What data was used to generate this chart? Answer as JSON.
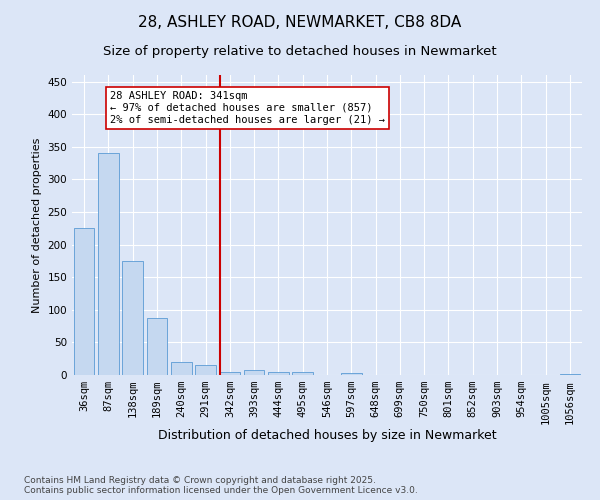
{
  "title1": "28, ASHLEY ROAD, NEWMARKET, CB8 8DA",
  "title2": "Size of property relative to detached houses in Newmarket",
  "xlabel": "Distribution of detached houses by size in Newmarket",
  "ylabel": "Number of detached properties",
  "categories": [
    "36sqm",
    "87sqm",
    "138sqm",
    "189sqm",
    "240sqm",
    "291sqm",
    "342sqm",
    "393sqm",
    "444sqm",
    "495sqm",
    "546sqm",
    "597sqm",
    "648sqm",
    "699sqm",
    "750sqm",
    "801sqm",
    "852sqm",
    "903sqm",
    "954sqm",
    "1005sqm",
    "1056sqm"
  ],
  "values": [
    225,
    340,
    175,
    88,
    20,
    15,
    5,
    7,
    5,
    5,
    0,
    3,
    0,
    0,
    0,
    0,
    0,
    0,
    0,
    0,
    2
  ],
  "bar_color": "#c5d8f0",
  "bar_edge_color": "#5a9bd5",
  "vline_index": 6,
  "vline_color": "#cc0000",
  "annotation_text": "28 ASHLEY ROAD: 341sqm\n← 97% of detached houses are smaller (857)\n2% of semi-detached houses are larger (21) →",
  "annotation_box_color": "#ffffff",
  "annotation_box_edge": "#cc0000",
  "ylim": [
    0,
    460
  ],
  "yticks": [
    0,
    50,
    100,
    150,
    200,
    250,
    300,
    350,
    400,
    450
  ],
  "footer": "Contains HM Land Registry data © Crown copyright and database right 2025.\nContains public sector information licensed under the Open Government Licence v3.0.",
  "bg_color": "#dce6f7",
  "plot_bg_color": "#dce6f7",
  "title1_fontsize": 11,
  "title2_fontsize": 9.5,
  "xlabel_fontsize": 9,
  "ylabel_fontsize": 8,
  "tick_fontsize": 7.5,
  "footer_fontsize": 6.5,
  "annotation_fontsize": 7.5
}
